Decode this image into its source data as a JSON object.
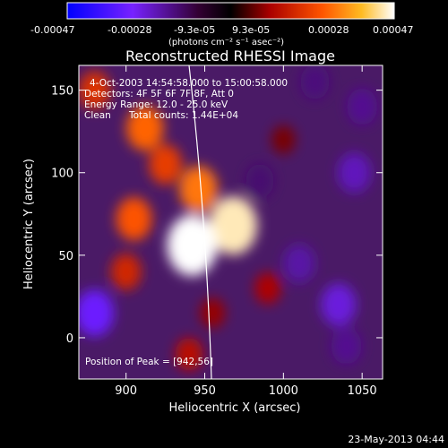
{
  "colorbar": {
    "tick_labels": [
      "-0.00047",
      "-0.00028",
      "-9.3e-05",
      "9.3e-05",
      "0.00028",
      "0.00047"
    ],
    "units_label": "(photons cm⁻² s⁻¹ asec⁻²)"
  },
  "chart_data": {
    "type": "heatmap",
    "title": "Reconstructed RHESSI Image",
    "xlabel": "Heliocentric X (arcsec)",
    "ylabel": "Heliocentric Y (arcsec)",
    "xlim": [
      870,
      1063
    ],
    "ylim": [
      -25,
      165
    ],
    "x_ticks": [
      900,
      950,
      1000,
      1050
    ],
    "y_ticks": [
      0,
      50,
      100,
      150
    ],
    "value_range": [
      -0.00047,
      0.00047
    ],
    "colormap": "red-temperature",
    "annotations": [
      "4-Oct-2003 14:54:58.000 to 15:00:58.000",
      "Detectors: 4F 5F 6F 7F 8F, Att 0",
      "Energy Range: 12.0 - 25.0 keV",
      "Clean",
      "Total counts: 1.44E+04"
    ],
    "peak_label": "Position of Peak = [942,56]",
    "peak": {
      "x": 942,
      "y": 56
    },
    "sources": [
      {
        "x": 942,
        "y": 56,
        "value": 0.00047
      },
      {
        "x": 968,
        "y": 68,
        "value": 0.00044
      },
      {
        "x": 946,
        "y": 90,
        "value": 0.0003
      },
      {
        "x": 912,
        "y": 127,
        "value": 0.00028
      },
      {
        "x": 905,
        "y": 72,
        "value": 0.00026
      },
      {
        "x": 925,
        "y": 105,
        "value": 0.00022
      },
      {
        "x": 900,
        "y": 40,
        "value": 0.00018
      },
      {
        "x": 880,
        "y": 150,
        "value": 0.0002
      },
      {
        "x": 990,
        "y": 30,
        "value": 0.00012
      },
      {
        "x": 955,
        "y": 15,
        "value": 0.0001
      },
      {
        "x": 1000,
        "y": 120,
        "value": 8e-05
      },
      {
        "x": 940,
        "y": -10,
        "value": 0.00014
      },
      {
        "x": 1010,
        "y": 45,
        "value": -0.0002
      },
      {
        "x": 1035,
        "y": 20,
        "value": -0.00025
      },
      {
        "x": 1045,
        "y": 100,
        "value": -0.00022
      },
      {
        "x": 1050,
        "y": 140,
        "value": -0.00018
      },
      {
        "x": 985,
        "y": 95,
        "value": -0.00015
      },
      {
        "x": 880,
        "y": 15,
        "value": -0.0003
      },
      {
        "x": 1040,
        "y": -5,
        "value": -0.00018
      },
      {
        "x": 1020,
        "y": 155,
        "value": -0.00016
      }
    ]
  },
  "footer_timestamp": "23-May-2013 04:44"
}
